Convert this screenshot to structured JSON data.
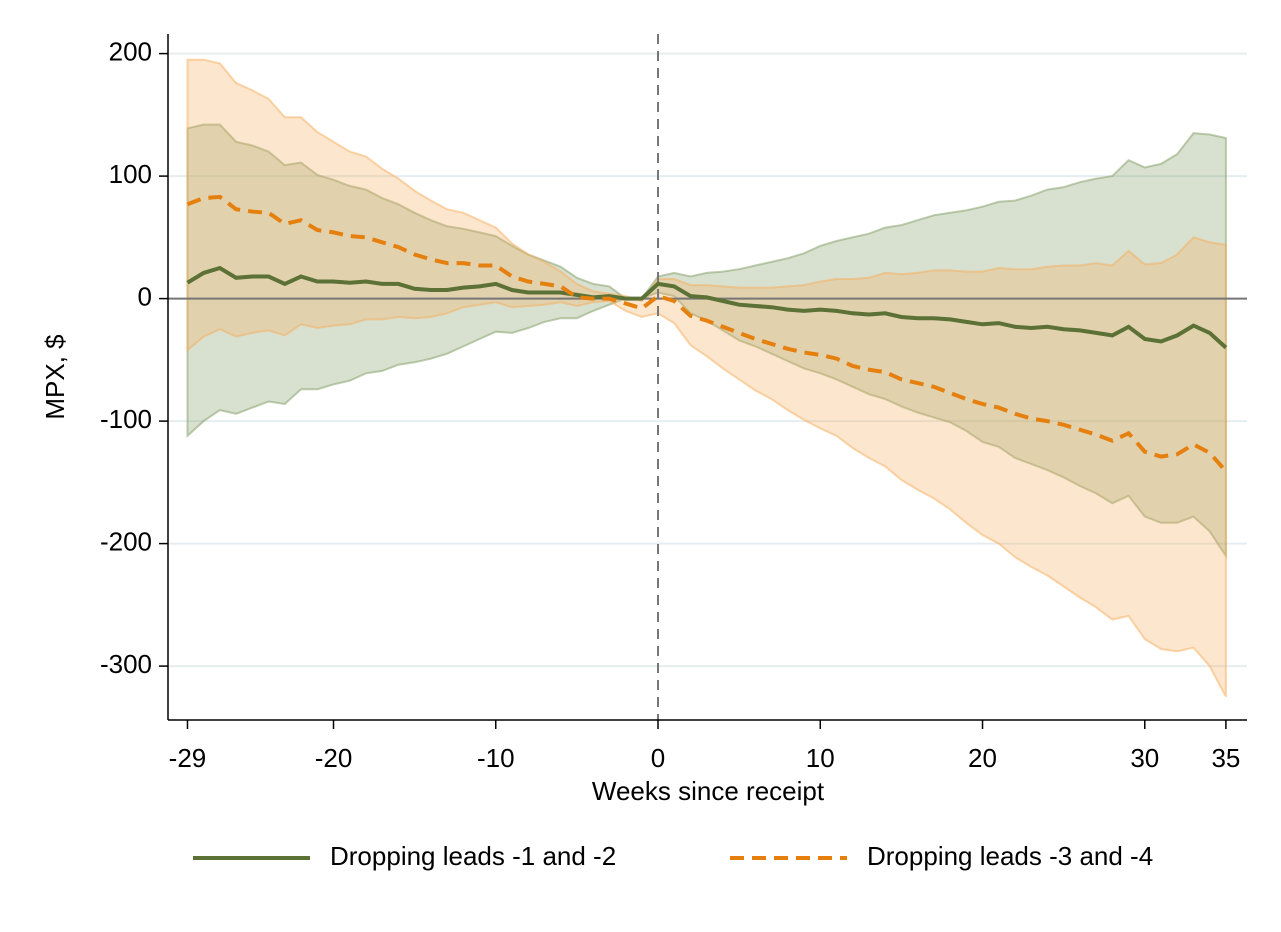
{
  "chart_data": {
    "type": "band-line",
    "x_label": "Weeks since receipt",
    "y_label": "MPX, $",
    "x": [
      -29,
      -28,
      -27,
      -26,
      -25,
      -24,
      -23,
      -22,
      -21,
      -20,
      -19,
      -18,
      -17,
      -16,
      -15,
      -14,
      -13,
      -12,
      -11,
      -10,
      -9,
      -8,
      -7,
      -6,
      -5,
      -4,
      -3,
      -2,
      -1,
      0,
      1,
      2,
      3,
      4,
      5,
      6,
      7,
      8,
      9,
      10,
      11,
      12,
      13,
      14,
      15,
      16,
      17,
      18,
      19,
      20,
      21,
      22,
      23,
      24,
      25,
      26,
      27,
      28,
      29,
      30,
      31,
      32,
      33,
      34,
      35
    ],
    "xlim": [
      -30.2,
      36.3
    ],
    "xticks": [
      -29,
      -20,
      -10,
      0,
      10,
      20,
      30,
      35
    ],
    "ylim": [
      -344,
      216
    ],
    "yticks": [
      200,
      100,
      0,
      -100,
      -200,
      -300
    ],
    "grid": true,
    "hline": 0,
    "vline": 0,
    "legend": "bottom",
    "series": [
      {
        "name": "Dropping leads -1 and -2",
        "color": "#5b7135",
        "band_color": "#7f9c62",
        "dash": false,
        "values": [
          13,
          21,
          25,
          17,
          18,
          18,
          12,
          18,
          14,
          14,
          13,
          14,
          12,
          12,
          8,
          7,
          7,
          9,
          10,
          12,
          7,
          5,
          5,
          5,
          3,
          1,
          2,
          0,
          0,
          12,
          10,
          2,
          1,
          -2,
          -5,
          -6,
          -7,
          -9,
          -10,
          -9,
          -10,
          -12,
          -13,
          -12,
          -15,
          -16,
          -16,
          -17,
          -19,
          -21,
          -20,
          -23,
          -24,
          -23,
          -25,
          -26,
          -28,
          -30,
          -23,
          -33,
          -35,
          -30,
          -22,
          -28,
          -40
        ],
        "upper": [
          139,
          142,
          142,
          128,
          125,
          120,
          109,
          111,
          101,
          97,
          92,
          89,
          82,
          77,
          70,
          64,
          59,
          57,
          54,
          51,
          43,
          36,
          31,
          26,
          17,
          12,
          10,
          0,
          0,
          18,
          21,
          18,
          21,
          22,
          24,
          27,
          30,
          33,
          37,
          43,
          47,
          50,
          53,
          58,
          60,
          64,
          68,
          70,
          72,
          75,
          79,
          80,
          84,
          89,
          91,
          95,
          98,
          100,
          113,
          107,
          110,
          118,
          135,
          134,
          131
        ],
        "lower": [
          -112,
          -100,
          -91,
          -94,
          -89,
          -84,
          -86,
          -74,
          -74,
          -70,
          -67,
          -61,
          -59,
          -54,
          -52,
          -49,
          -45,
          -39,
          -33,
          -27,
          -28,
          -24,
          -19,
          -16,
          -16,
          -10,
          -5,
          0,
          0,
          5,
          2,
          -12,
          -18,
          -26,
          -34,
          -39,
          -45,
          -51,
          -57,
          -61,
          -66,
          -72,
          -78,
          -82,
          -88,
          -93,
          -97,
          -101,
          -108,
          -117,
          -121,
          -130,
          -135,
          -140,
          -146,
          -153,
          -159,
          -167,
          -161,
          -178,
          -183,
          -183,
          -178,
          -190,
          -210
        ]
      },
      {
        "name": "Dropping leads -3 and -4",
        "color": "#e5800f",
        "band_color": "#f6ad5c",
        "dash": true,
        "values": [
          77,
          82,
          83,
          73,
          71,
          70,
          61,
          64,
          56,
          54,
          51,
          50,
          46,
          42,
          36,
          32,
          29,
          29,
          27,
          27,
          18,
          14,
          12,
          10,
          1,
          0,
          0,
          -4,
          -8,
          2,
          -2,
          -14,
          -18,
          -23,
          -28,
          -33,
          -37,
          -41,
          -44,
          -46,
          -49,
          -55,
          -58,
          -60,
          -66,
          -69,
          -72,
          -77,
          -82,
          -86,
          -89,
          -94,
          -98,
          -100,
          -103,
          -107,
          -111,
          -116,
          -110,
          -125,
          -129,
          -127,
          -119,
          -126,
          -141
        ],
        "upper": [
          195,
          195,
          192,
          176,
          170,
          163,
          148,
          148,
          136,
          128,
          120,
          116,
          106,
          98,
          88,
          80,
          73,
          70,
          64,
          58,
          45,
          36,
          30,
          22,
          12,
          6,
          4,
          2,
          -2,
          16,
          16,
          11,
          11,
          10,
          9,
          9,
          9,
          10,
          11,
          14,
          16,
          16,
          17,
          21,
          20,
          21,
          23,
          23,
          22,
          22,
          25,
          24,
          24,
          26,
          27,
          27,
          29,
          27,
          39,
          28,
          29,
          36,
          50,
          46,
          44
        ],
        "lower": [
          -42,
          -31,
          -25,
          -31,
          -28,
          -26,
          -30,
          -21,
          -24,
          -22,
          -21,
          -17,
          -17,
          -15,
          -16,
          -15,
          -12,
          -7,
          -5,
          -3,
          -7,
          -6,
          -5,
          -3,
          -6,
          -3,
          -2,
          -10,
          -15,
          -12,
          -20,
          -38,
          -47,
          -57,
          -66,
          -75,
          -82,
          -91,
          -99,
          -106,
          -112,
          -122,
          -130,
          -137,
          -148,
          -156,
          -163,
          -172,
          -183,
          -193,
          -200,
          -211,
          -219,
          -226,
          -235,
          -244,
          -252,
          -262,
          -259,
          -278,
          -286,
          -288,
          -285,
          -300,
          -325
        ]
      }
    ]
  }
}
